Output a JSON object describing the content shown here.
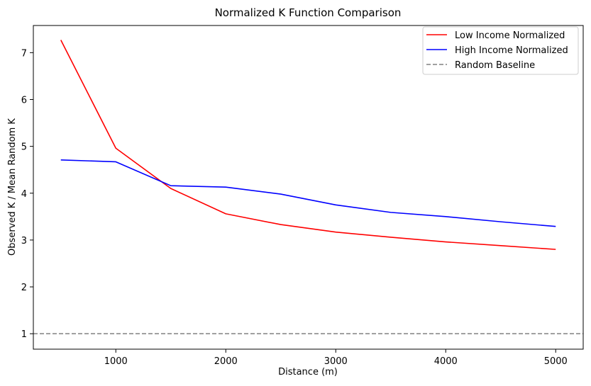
{
  "chart_data": {
    "type": "line",
    "title": "Normalized K Function Comparison",
    "xlabel": "Distance (m)",
    "ylabel": "Observed K / Mean Random K",
    "xlim": [
      250,
      5250
    ],
    "ylim": [
      0.67,
      7.58
    ],
    "x_ticks": [
      1000,
      2000,
      3000,
      4000,
      5000
    ],
    "y_ticks": [
      1,
      2,
      3,
      4,
      5,
      6,
      7
    ],
    "grid": false,
    "legend_position": "top-right",
    "x": [
      500,
      1000,
      1500,
      2000,
      2500,
      3000,
      3500,
      4000,
      4500,
      5000
    ],
    "series": [
      {
        "name": "Low Income Normalized",
        "color": "#ff0000",
        "style": "solid",
        "values": [
          7.27,
          4.96,
          4.1,
          3.56,
          3.33,
          3.17,
          3.06,
          2.96,
          2.88,
          2.8
        ]
      },
      {
        "name": "High Income Normalized",
        "color": "#0000ff",
        "style": "solid",
        "values": [
          4.71,
          4.67,
          4.16,
          4.13,
          3.98,
          3.75,
          3.59,
          3.5,
          3.39,
          3.29
        ]
      }
    ],
    "reference_lines": [
      {
        "name": "Random Baseline",
        "y": 1,
        "color": "#808080",
        "style": "dashed"
      }
    ]
  }
}
